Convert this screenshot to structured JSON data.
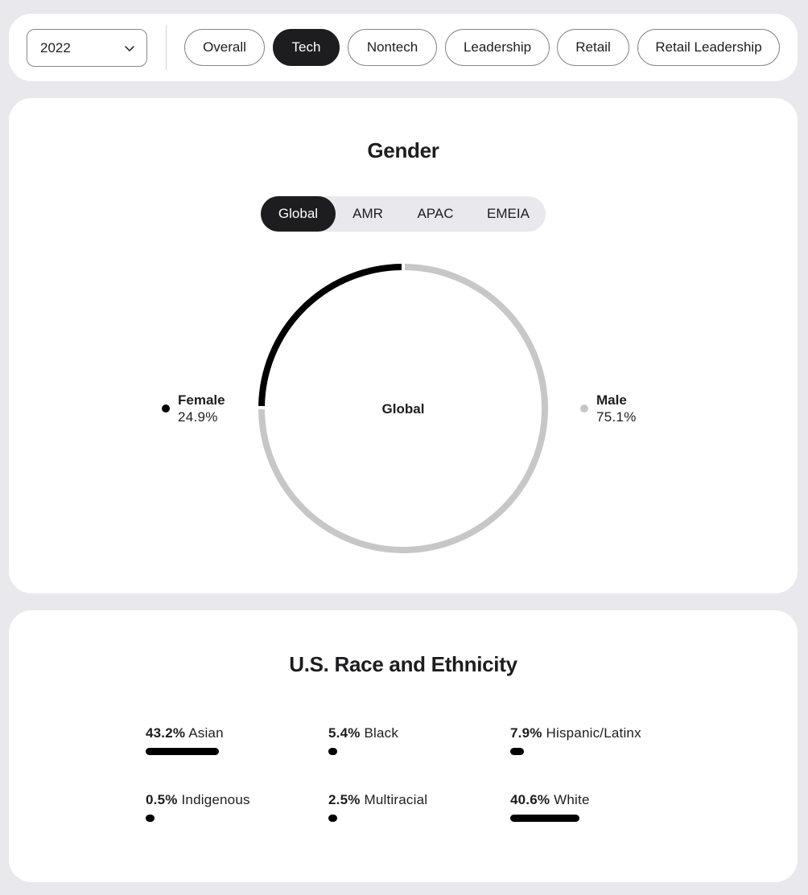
{
  "filters": {
    "year": "2022",
    "categories": [
      "Overall",
      "Tech",
      "Nontech",
      "Leadership",
      "Retail",
      "Retail Leadership"
    ],
    "active_category": "Tech"
  },
  "gender": {
    "title": "Gender",
    "regions": [
      "Global",
      "AMR",
      "APAC",
      "EMEIA"
    ],
    "active_region": "Global",
    "center_label": "Global",
    "female": {
      "label": "Female",
      "value": "24.9%"
    },
    "male": {
      "label": "Male",
      "value": "75.1%"
    }
  },
  "race": {
    "title": "U.S. Race and Ethnicity",
    "items": [
      {
        "pct": "43.2%",
        "label": "Asian"
      },
      {
        "pct": "5.4%",
        "label": "Black"
      },
      {
        "pct": "7.9%",
        "label": "Hispanic/Latinx"
      },
      {
        "pct": "0.5%",
        "label": "Indigenous"
      },
      {
        "pct": "2.5%",
        "label": "Multiracial"
      },
      {
        "pct": "40.6%",
        "label": "White"
      }
    ]
  },
  "chart_data": {
    "type": "pie",
    "categories": [
      "Female",
      "Male"
    ],
    "values": [
      24.9,
      75.1
    ],
    "title": "Gender",
    "center_label": "Global",
    "colors": [
      "#000000",
      "#c7c7c7"
    ]
  },
  "colors": {
    "accent": "#1d1d1f",
    "female": "#000000",
    "male": "#c7c7c7",
    "background": "#e8e8ed",
    "bar": "#000000"
  }
}
